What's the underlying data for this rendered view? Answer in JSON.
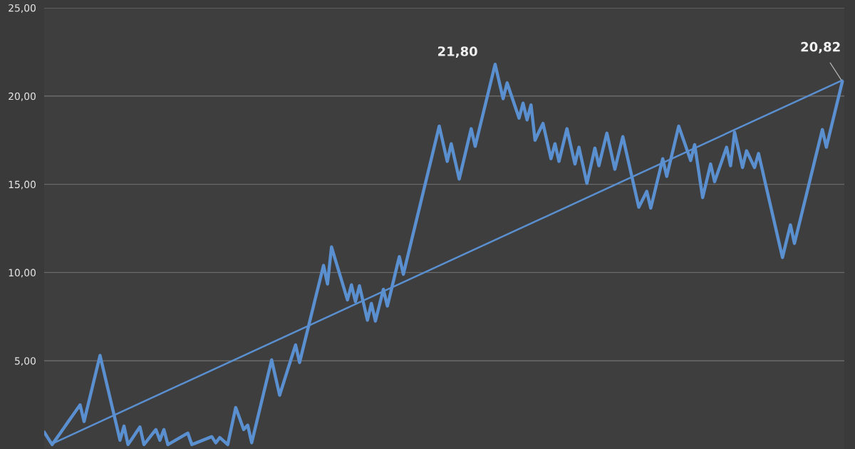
{
  "chart_data": {
    "type": "line",
    "categories": [
      null,
      null,
      null,
      null,
      null,
      null,
      null,
      null,
      null,
      null,
      null,
      null,
      null,
      null,
      null,
      null,
      null,
      null,
      null,
      null,
      null,
      null,
      null,
      null,
      null,
      null,
      null,
      null,
      null,
      null,
      null,
      null,
      null,
      null,
      null,
      null,
      null,
      null,
      null,
      null,
      null,
      null,
      null,
      null,
      null,
      null,
      null,
      null,
      null,
      null,
      null,
      null,
      null,
      null,
      null,
      null,
      null,
      null,
      null,
      null,
      null,
      null,
      null,
      null,
      null,
      null,
      null,
      null,
      null,
      null,
      null,
      null,
      null,
      null,
      null,
      null,
      null,
      null,
      null,
      null,
      null,
      null,
      null,
      null,
      null,
      null,
      null,
      null,
      null,
      null,
      null,
      null,
      null,
      null,
      null,
      null,
      null,
      null,
      null,
      null,
      null,
      null,
      null,
      null,
      null,
      null,
      null,
      null,
      null,
      null,
      null,
      null,
      null,
      null,
      null,
      null,
      null,
      null,
      null,
      null,
      null,
      null,
      null,
      null,
      null,
      null,
      null,
      null,
      null,
      null,
      null,
      null,
      null,
      null,
      null,
      null,
      null,
      null,
      null,
      null,
      null,
      null,
      null,
      null,
      null,
      null,
      null,
      null,
      null,
      null,
      null,
      null,
      null,
      null,
      null,
      null,
      null,
      null,
      null,
      null,
      null,
      null,
      null,
      null,
      null,
      null,
      null,
      null,
      null,
      null,
      null,
      null,
      null,
      null,
      null,
      null,
      null,
      null,
      null,
      null,
      null,
      null,
      null,
      null,
      null,
      null,
      null,
      null,
      null,
      null,
      null,
      null,
      null,
      null,
      null,
      null,
      null,
      null,
      null,
      null,
      null
    ],
    "ylim": [
      0,
      25
    ],
    "yticks": [
      {
        "value": 5,
        "label": "5,00"
      },
      {
        "value": 10,
        "label": "10,00"
      },
      {
        "value": 15,
        "label": "15,00"
      },
      {
        "value": 20,
        "label": "20,00"
      },
      {
        "value": 25,
        "label": "25,00"
      }
    ],
    "tick_labels": "y",
    "grid": "y",
    "series": [
      {
        "color": "#5a8fd0",
        "values": [
          0.96,
          0.6,
          0.25,
          0.57,
          0.89,
          1.21,
          1.54,
          1.86,
          2.18,
          2.5,
          1.56,
          2.5,
          3.43,
          4.37,
          5.3,
          4.34,
          3.38,
          2.42,
          1.46,
          0.5,
          1.3,
          0.25,
          0.58,
          0.92,
          1.25,
          0.25,
          0.53,
          0.82,
          1.1,
          0.5,
          1.1,
          0.25,
          0.38,
          0.51,
          0.64,
          0.77,
          0.9,
          0.25,
          0.34,
          0.43,
          0.52,
          0.61,
          0.7,
          0.35,
          0.65,
          0.45,
          0.25,
          1.3,
          2.35,
          1.73,
          1.1,
          1.35,
          0.35,
          1.29,
          2.23,
          3.17,
          4.11,
          5.05,
          4.05,
          3.05,
          3.76,
          4.48,
          5.19,
          5.9,
          4.9,
          5.82,
          6.73,
          7.65,
          8.57,
          9.48,
          10.4,
          9.35,
          11.45,
          10.7,
          9.95,
          9.2,
          8.45,
          9.3,
          8.35,
          9.25,
          8.28,
          7.3,
          8.25,
          7.25,
          8.15,
          9.05,
          8.1,
          9.03,
          9.97,
          10.9,
          9.9,
          10.83,
          11.77,
          12.7,
          13.63,
          14.57,
          15.5,
          16.43,
          17.37,
          18.3,
          17.3,
          16.3,
          17.3,
          16.3,
          15.3,
          16.25,
          17.2,
          18.15,
          17.15,
          18.08,
          19.01,
          19.94,
          20.87,
          21.8,
          20.83,
          19.85,
          20.75,
          20.08,
          19.42,
          18.75,
          19.6,
          18.65,
          19.5,
          17.5,
          17.98,
          18.45,
          17.45,
          16.45,
          17.3,
          16.3,
          17.23,
          18.15,
          17.15,
          16.15,
          17.1,
          16.08,
          15.05,
          16.05,
          17.05,
          16.05,
          16.98,
          17.9,
          16.88,
          15.85,
          16.78,
          17.7,
          16.7,
          15.7,
          14.7,
          13.7,
          14.15,
          14.6,
          13.65,
          14.58,
          15.52,
          16.45,
          15.45,
          16.4,
          17.35,
          18.3,
          17.65,
          17.0,
          16.35,
          17.25,
          15.75,
          14.25,
          15.2,
          16.15,
          15.15,
          15.8,
          16.45,
          17.1,
          16.05,
          17.95,
          16.95,
          15.95,
          16.9,
          16.43,
          15.95,
          16.75,
          15.77,
          14.78,
          13.8,
          12.82,
          11.83,
          10.85,
          11.78,
          12.7,
          11.65,
          12.57,
          13.49,
          14.41,
          15.34,
          16.26,
          17.18,
          18.1,
          17.1,
          18.03,
          18.96,
          19.89,
          20.82
        ]
      },
      {
        "type": "line",
        "color": "#5a8fd0",
        "values": [
          null,
          null,
          0.3,
          null,
          null,
          null,
          null,
          null,
          null,
          null,
          null,
          null,
          null,
          null,
          null,
          null,
          null,
          null,
          null,
          null,
          null,
          null,
          null,
          null,
          null,
          null,
          null,
          null,
          null,
          null,
          null,
          null,
          null,
          null,
          null,
          null,
          null,
          null,
          null,
          null,
          null,
          null,
          null,
          null,
          null,
          null,
          null,
          null,
          null,
          null,
          null,
          null,
          null,
          null,
          null,
          null,
          null,
          null,
          null,
          null,
          null,
          null,
          null,
          null,
          null,
          null,
          null,
          null,
          null,
          null,
          null,
          null,
          null,
          null,
          null,
          null,
          null,
          null,
          null,
          null,
          null,
          null,
          null,
          null,
          null,
          null,
          null,
          null,
          null,
          null,
          null,
          null,
          null,
          null,
          null,
          null,
          null,
          null,
          null,
          null,
          null,
          null,
          null,
          null,
          null,
          null,
          null,
          null,
          null,
          null,
          null,
          null,
          null,
          null,
          null,
          null,
          null,
          null,
          null,
          null,
          null,
          null,
          null,
          null,
          null,
          null,
          null,
          null,
          null,
          null,
          null,
          null,
          null,
          null,
          null,
          null,
          null,
          null,
          null,
          null,
          null,
          null,
          null,
          null,
          null,
          null,
          null,
          null,
          null,
          null,
          null,
          null,
          null,
          null,
          null,
          null,
          null,
          null,
          null,
          null,
          null,
          null,
          null,
          null,
          null,
          null,
          null,
          null,
          null,
          null,
          null,
          null,
          null,
          null,
          null,
          null,
          null,
          null,
          null,
          null,
          null,
          null,
          null,
          null,
          null,
          null,
          null,
          null,
          null,
          null,
          null,
          null,
          null,
          null,
          null,
          null,
          null,
          null,
          null,
          null,
          20.9
        ]
      }
    ],
    "annotations": [
      "21,80",
      "20,82"
    ]
  }
}
